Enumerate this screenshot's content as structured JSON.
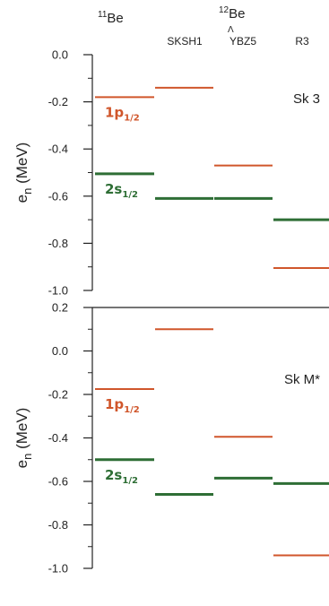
{
  "header": {
    "be11": {
      "mass": "11",
      "sym": "Be"
    },
    "be12": {
      "mass": "12",
      "lambda": "Λ",
      "sym": "Be"
    },
    "columns": [
      "SKSH1",
      "YBZ5",
      "R3"
    ]
  },
  "colors": {
    "p_state": "#d0562b",
    "s_state": "#2e6e35",
    "axis": "#222222"
  },
  "chart_data": [
    {
      "type": "level-scheme",
      "panel_label": "Sk 3",
      "ylabel": "e_n (MeV)",
      "ylim": [
        -1.0,
        0.0
      ],
      "yticks": [
        0.0,
        -0.2,
        -0.4,
        -0.6,
        -0.8,
        -1.0
      ],
      "ytick_labels": [
        "0.0",
        "-0.2",
        "-0.4",
        "-0.6",
        "-0.8",
        "-1.0"
      ],
      "columns": [
        "11Be",
        "SKSH1",
        "YBZ5",
        "R3"
      ],
      "series": [
        {
          "name": "1p1/2",
          "values": [
            -0.18,
            -0.14,
            -0.47,
            -0.905
          ]
        },
        {
          "name": "2s1/2",
          "values": [
            -0.505,
            -0.61,
            -0.61,
            -0.7
          ]
        }
      ],
      "annotations": [
        {
          "series": "1p1/2",
          "text": "1p",
          "sub": "1/2"
        },
        {
          "series": "2s1/2",
          "text": "2s",
          "sub": "1/2"
        }
      ]
    },
    {
      "type": "level-scheme",
      "panel_label": "Sk M*",
      "ylabel": "e_n (MeV)",
      "ylim": [
        -1.0,
        0.2
      ],
      "yticks": [
        0.2,
        0.0,
        -0.2,
        -0.4,
        -0.6,
        -0.8,
        -1.0
      ],
      "ytick_labels": [
        "0.2",
        "0.0",
        "-0.2",
        "-0.4",
        "-0.6",
        "-0.8",
        "-1.0"
      ],
      "columns": [
        "11Be",
        "SKSH1",
        "YBZ5",
        "R3"
      ],
      "series": [
        {
          "name": "1p1/2",
          "values": [
            -0.175,
            0.1,
            -0.395,
            -0.94
          ]
        },
        {
          "name": "2s1/2",
          "values": [
            -0.5,
            -0.66,
            -0.585,
            -0.61
          ]
        }
      ],
      "annotations": [
        {
          "series": "1p1/2",
          "text": "1p",
          "sub": "1/2"
        },
        {
          "series": "2s1/2",
          "text": "2s",
          "sub": "1/2"
        }
      ]
    }
  ]
}
